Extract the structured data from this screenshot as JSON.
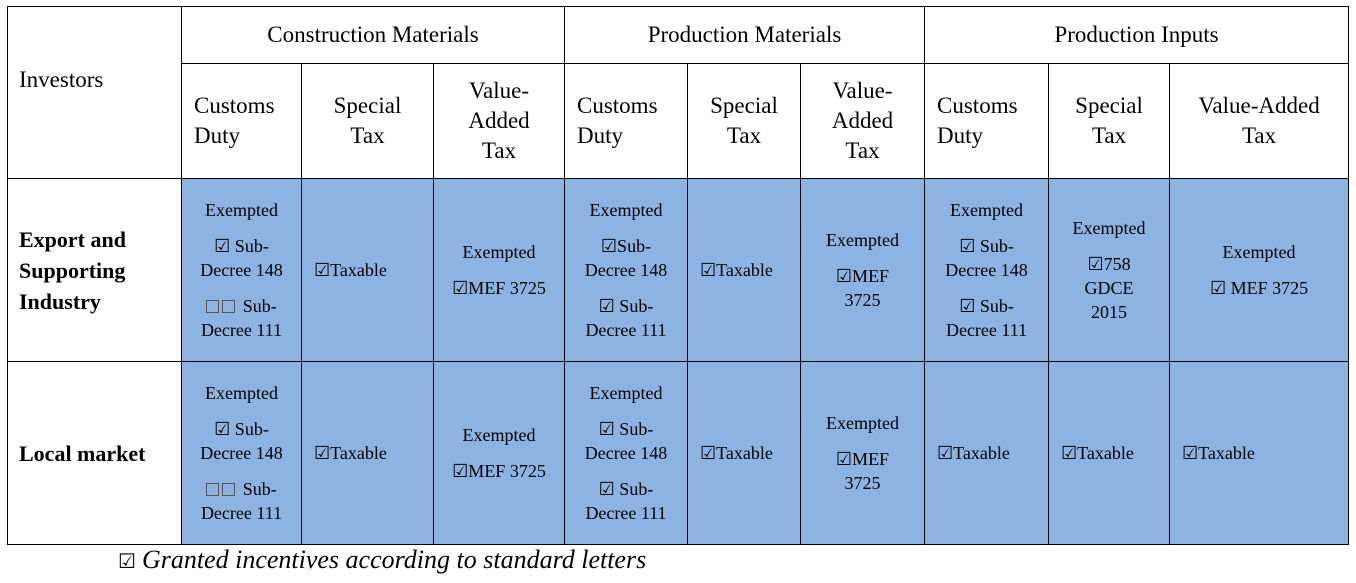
{
  "table": {
    "investors_label": "Investors",
    "groups": [
      "Construction Materials",
      "Production Materials",
      "Production Inputs"
    ],
    "subheads": {
      "customs": [
        "Customs",
        "Duty"
      ],
      "special": [
        "Special",
        "Tax"
      ],
      "vat3": [
        "Value-",
        "Added",
        "Tax"
      ],
      "vat2": [
        "Value-Added",
        "Tax"
      ]
    },
    "rows": {
      "export": {
        "label": [
          "Export and",
          "Supporting",
          "Industry"
        ]
      },
      "local": {
        "label": "Local market"
      }
    },
    "text": {
      "exempted": "Exempted",
      "taxable": "☑Taxable",
      "chk_sub": "☑ Sub-",
      "chk_sub_tight": "☑Sub-",
      "box_sub": " Sub-",
      "decree148": "Decree 148",
      "decree111": "Decree 111",
      "mef3725": "☑MEF 3725",
      "mef3725_spaced": "☑ MEF 3725",
      "mef_only": "☑MEF",
      "num3725": "3725",
      "chk758": "☑758",
      "gdce": "GDCE",
      "y2015": "2015"
    }
  },
  "legend": {
    "symbol": "☑",
    "text": "Granted incentives according to standard letters"
  }
}
